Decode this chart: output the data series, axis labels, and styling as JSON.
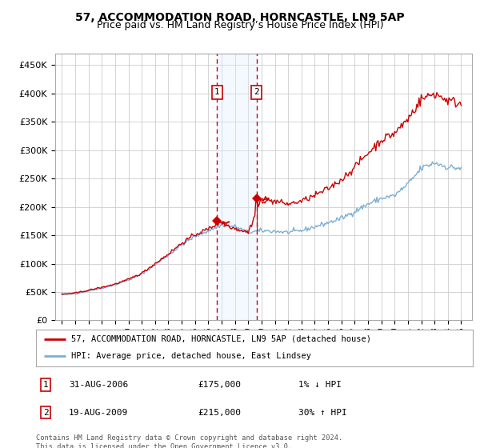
{
  "title": "57, ACCOMMODATION ROAD, HORNCASTLE, LN9 5AP",
  "subtitle": "Price paid vs. HM Land Registry’s House Price Index (HPI)",
  "title_fontsize": 10,
  "subtitle_fontsize": 9,
  "ylabel_ticks": [
    "£0",
    "£50K",
    "£100K",
    "£150K",
    "£200K",
    "£250K",
    "£300K",
    "£350K",
    "£400K",
    "£450K"
  ],
  "ytick_vals": [
    0,
    50000,
    100000,
    150000,
    200000,
    250000,
    300000,
    350000,
    400000,
    450000
  ],
  "ylim": [
    0,
    470000
  ],
  "xlim_start": 1994.5,
  "xlim_end": 2025.8,
  "xtick_years": [
    1995,
    1996,
    1997,
    1998,
    1999,
    2000,
    2001,
    2002,
    2003,
    2004,
    2005,
    2006,
    2007,
    2008,
    2009,
    2010,
    2011,
    2012,
    2013,
    2014,
    2015,
    2016,
    2017,
    2018,
    2019,
    2020,
    2021,
    2022,
    2023,
    2024,
    2025
  ],
  "vline1_x": 2006.67,
  "vline2_x": 2009.63,
  "shade_color": "#ddeeff",
  "vline_color": "#cc0000",
  "transaction1": {
    "num": 1,
    "date": "31-AUG-2006",
    "price": "£175,000",
    "hpi": "1% ↓ HPI"
  },
  "transaction2": {
    "num": 2,
    "date": "19-AUG-2009",
    "price": "£215,000",
    "hpi": "30% ↑ HPI"
  },
  "legend_line1": "57, ACCOMMODATION ROAD, HORNCASTLE, LN9 5AP (detached house)",
  "legend_line2": "HPI: Average price, detached house, East Lindsey",
  "footnote": "Contains HM Land Registry data © Crown copyright and database right 2024.\nThis data is licensed under the Open Government Licence v3.0.",
  "line_red_color": "#cc0000",
  "line_blue_color": "#7bafd4",
  "bg_color": "#ffffff",
  "grid_color": "#cccccc",
  "marker1_price": 175000,
  "marker2_price": 215000
}
